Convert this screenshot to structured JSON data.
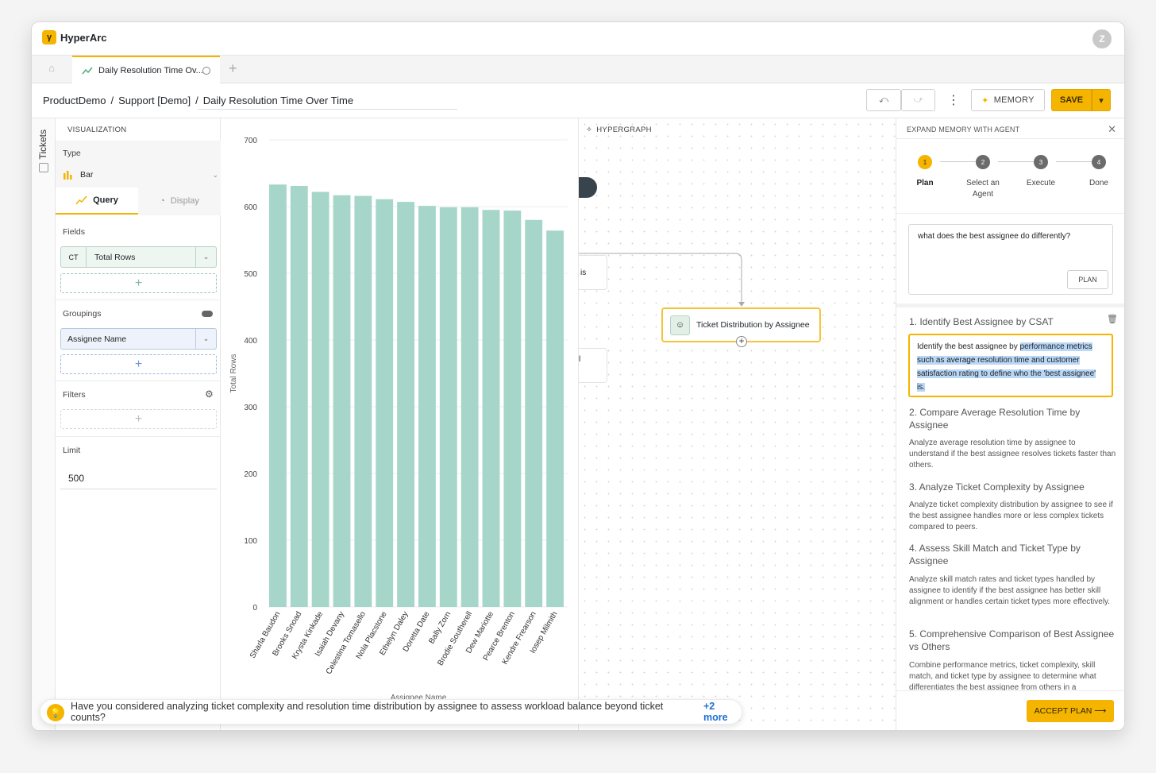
{
  "app": {
    "name": "HyperArc",
    "user_initial": "Z"
  },
  "tabs": [
    {
      "label": "Daily Resolution Time Ov..."
    }
  ],
  "breadcrumb": [
    "ProductDemo",
    "Support [Demo]",
    "Daily Resolution Time Over Time"
  ],
  "toolbar": {
    "memory_label": "MEMORY",
    "save_label": "SAVE"
  },
  "side_tab": "Tickets",
  "viz": {
    "section_title": "VISUALIZATION",
    "type_label": "Type",
    "type_value": "Bar",
    "query_tab": "Query",
    "display_tab": "Display",
    "fields_label": "Fields",
    "field_tag": "CT",
    "field_value": "Total Rows",
    "groupings_label": "Groupings",
    "grouping_value": "Assignee Name",
    "filters_label": "Filters",
    "limit_label": "Limit",
    "limit_value": "500"
  },
  "chart_data": {
    "type": "bar",
    "categories": [
      "Sharla Baudon",
      "Brooks Snoad",
      "Krysta Kinkade",
      "Isaiah Devany",
      "Celestina Tomasello",
      "Nola Placstone",
      "Ethelyn Daley",
      "Doretta Date",
      "Bally Zorn",
      "Brodie Southerell",
      "Dew Mariotte",
      "Pearce Brenton",
      "Kendre Frearson",
      "Iosep Milmith"
    ],
    "values": [
      633,
      631,
      622,
      617,
      616,
      611,
      607,
      601,
      599,
      599,
      595,
      594,
      580,
      564
    ],
    "xlabel": "Assignee Name",
    "ylabel": "Total Rows",
    "ylim": [
      0,
      700
    ],
    "yticks": [
      0,
      100,
      200,
      300,
      400,
      500,
      600,
      700
    ],
    "color": "#a6d6ca",
    "grid": true
  },
  "hypergraph": {
    "title": "HYPERGRAPH",
    "node_label": "Ticket Distribution by Assignee",
    "partial_node_1": "is",
    "partial_node_2": "l"
  },
  "agent": {
    "title": "EXPAND MEMORY WITH AGENT",
    "steps": [
      {
        "num": "1",
        "label": "Plan"
      },
      {
        "num": "2",
        "label": "Select an Agent"
      },
      {
        "num": "3",
        "label": "Execute"
      },
      {
        "num": "4",
        "label": "Done"
      }
    ],
    "question": "what does the best assignee do differently?",
    "plan_button": "PLAN",
    "plan_items": [
      {
        "title": "1. Identify Best Assignee by CSAT",
        "desc_pre": "Identify the best assignee by ",
        "desc_sel": "performance metrics such as average resolution time and customer satisfaction rating to define who the 'best assignee' is."
      },
      {
        "title": "2. Compare Average Resolution Time by Assignee",
        "desc": "Analyze average resolution time by assignee to understand if the best assignee resolves tickets faster than others."
      },
      {
        "title": "3. Analyze Ticket Complexity by Assignee",
        "desc": "Analyze ticket complexity distribution by assignee to see if the best assignee handles more or less complex tickets compared to peers."
      },
      {
        "title": "4. Assess Skill Match and Ticket Type by Assignee",
        "desc": "Analyze skill match rates and ticket types handled by assignee to identify if the best assignee has better skill alignment or handles certain ticket types more effectively."
      },
      {
        "title": "5. Comprehensive Comparison of Best Assignee vs Others",
        "desc": "Combine performance metrics, ticket complexity, skill match, and ticket type by assignee to determine what differentiates the best assignee from others in a"
      }
    ],
    "accept_button": "ACCEPT PLAN ⟶"
  },
  "suggestion": {
    "text": "Have you considered analyzing ticket complexity and resolution time distribution by assignee to assess workload balance beyond ticket counts?",
    "more": "+2 more"
  }
}
